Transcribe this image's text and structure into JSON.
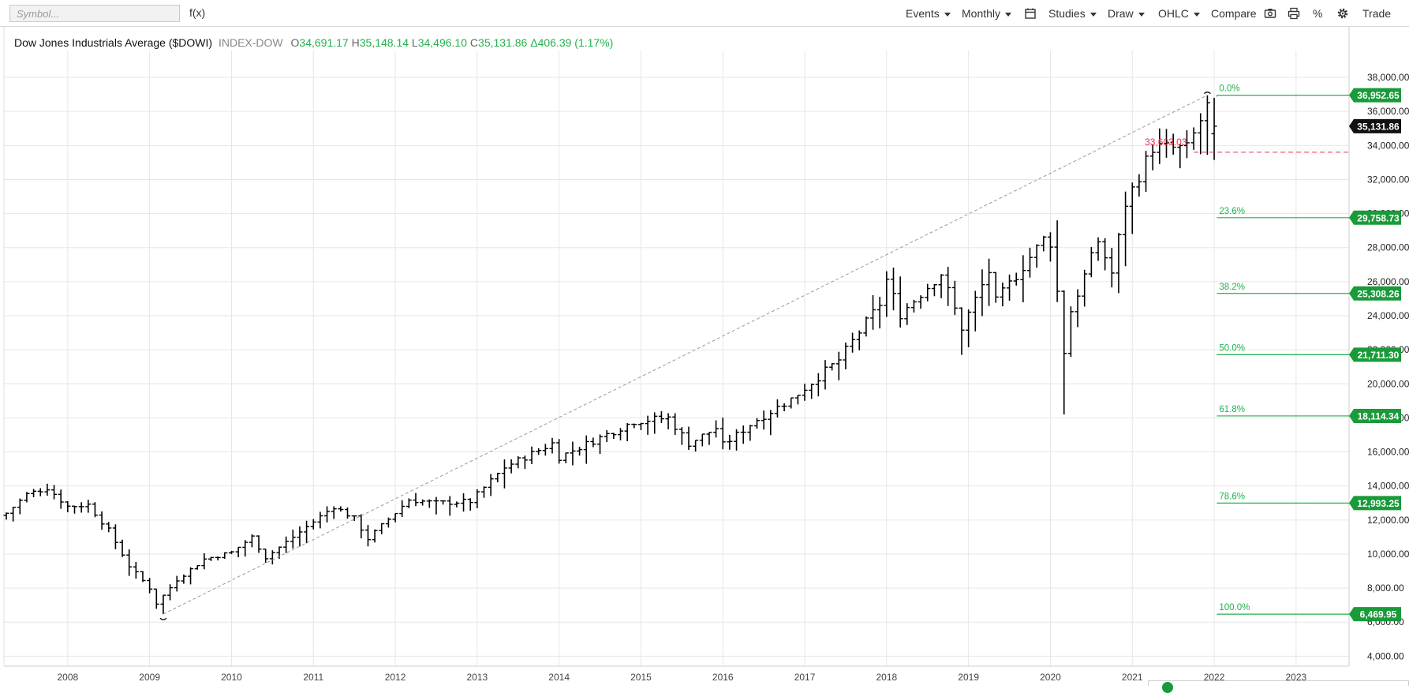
{
  "toolbar": {
    "symbol_placeholder": "Symbol...",
    "fx": "f(x)",
    "events": "Events",
    "period": "Monthly",
    "studies": "Studies",
    "draw": "Draw",
    "chart_type": "OHLC",
    "compare": "Compare",
    "percent": "%",
    "trade": "Trade"
  },
  "legend": {
    "name": "Dow Jones Industrials Average ($DOWI)",
    "exchange": "INDEX-DOW",
    "o_label": "O",
    "open": "34,691.17",
    "h_label": "H",
    "high": "35,148.14",
    "l_label": "L",
    "low": "34,496.10",
    "c_label": "C",
    "close": "35,131.86",
    "change": "Δ406.39 (1.17%)"
  },
  "colors": {
    "bars": "#000000",
    "green": "#22b14c",
    "fib_label": "#1a9a3a",
    "red": "#e8334a",
    "grid": "#e6e6e6",
    "last_price_bg": "#111111"
  },
  "chart_data": {
    "type": "ohlc",
    "title": "Dow Jones Industrials Average ($DOWI)",
    "x_tick_labels": [
      "2008",
      "2009",
      "2010",
      "2011",
      "2012",
      "2013",
      "2014",
      "2015",
      "2016",
      "2017",
      "2018",
      "2019",
      "2020",
      "2021",
      "2022",
      "2023"
    ],
    "y_tick_labels": [
      "4,000.00",
      "6,000.00",
      "8,000.00",
      "10,000.00",
      "12,000.00",
      "14,000.00",
      "16,000.00",
      "18,000.00",
      "20,000.00",
      "22,000.00",
      "24,000.00",
      "26,000.00",
      "28,000.00",
      "30,000.00",
      "32,000.00",
      "34,000.00",
      "36,000.00",
      "38,000.00"
    ],
    "y_ticks": [
      4000,
      6000,
      8000,
      10000,
      12000,
      14000,
      16000,
      18000,
      20000,
      22000,
      24000,
      26000,
      28000,
      30000,
      32000,
      34000,
      36000,
      38000
    ],
    "ylim": [
      3600,
      39300
    ],
    "x_range": [
      "2007-04",
      "2023-08"
    ],
    "grid": true,
    "anchors": [
      [
        "2007-04",
        12400
      ],
      [
        "2007-07",
        13500
      ],
      [
        "2007-10",
        13900
      ],
      [
        "2008-01",
        12800
      ],
      [
        "2008-04",
        12900
      ],
      [
        "2008-07",
        11400
      ],
      [
        "2008-10",
        9300
      ],
      [
        "2009-01",
        8000
      ],
      [
        "2009-02",
        7100
      ],
      [
        "2009-05",
        8500
      ],
      [
        "2009-09",
        9700
      ],
      [
        "2010-01",
        10100
      ],
      [
        "2010-04",
        11000
      ],
      [
        "2010-06",
        9800
      ],
      [
        "2010-12",
        11600
      ],
      [
        "2011-04",
        12800
      ],
      [
        "2011-07",
        12100
      ],
      [
        "2011-09",
        10900
      ],
      [
        "2012-03",
        13200
      ],
      [
        "2012-07",
        13000
      ],
      [
        "2012-12",
        13100
      ],
      [
        "2013-05",
        15100
      ],
      [
        "2013-12",
        16500
      ],
      [
        "2014-01",
        15700
      ],
      [
        "2014-12",
        17800
      ],
      [
        "2015-05",
        18000
      ],
      [
        "2015-08",
        16500
      ],
      [
        "2015-12",
        17400
      ],
      [
        "2016-01",
        16400
      ],
      [
        "2016-06",
        17900
      ],
      [
        "2016-11",
        19100
      ],
      [
        "2017-06",
        21400
      ],
      [
        "2017-12",
        24700
      ],
      [
        "2018-01",
        26100
      ],
      [
        "2018-03",
        24100
      ],
      [
        "2018-09",
        26500
      ],
      [
        "2018-12",
        23300
      ],
      [
        "2019-04",
        26600
      ],
      [
        "2019-05",
        24800
      ],
      [
        "2019-12",
        28500
      ],
      [
        "2020-01",
        28300
      ],
      [
        "2020-02",
        25400
      ],
      [
        "2020-03",
        21900
      ],
      [
        "2020-04",
        24300
      ],
      [
        "2020-08",
        28400
      ],
      [
        "2020-10",
        26500
      ],
      [
        "2020-12",
        30600
      ],
      [
        "2021-04",
        33900
      ],
      [
        "2021-09",
        33800
      ],
      [
        "2021-12",
        36300
      ],
      [
        "2022-01",
        35131.86
      ]
    ],
    "last_bar": {
      "date": "2022-01",
      "open": 34691.17,
      "high": 35148.14,
      "low": 34496.1,
      "close": 35131.86
    },
    "trendline": {
      "from": [
        "2009-03",
        6469.95
      ],
      "to": [
        "2021-12",
        36952.65
      ]
    },
    "fibonacci": {
      "high": 36952.65,
      "low": 6469.95,
      "start": "2021-12",
      "levels": [
        {
          "label": "0.0%",
          "value": 36952.65,
          "tag": "36,952.65"
        },
        {
          "label": "23.6%",
          "value": 29758.73,
          "tag": "29,758.73"
        },
        {
          "label": "38.2%",
          "value": 25308.26,
          "tag": "25,308.26"
        },
        {
          "label": "50.0%",
          "value": 21711.3,
          "tag": "21,711.30"
        },
        {
          "label": "61.8%",
          "value": 18114.34,
          "tag": "18,114.34"
        },
        {
          "label": "78.6%",
          "value": 12993.25,
          "tag": "12,993.25"
        },
        {
          "label": "100.0%",
          "value": 6469.95,
          "tag": "6,469.95"
        }
      ]
    },
    "last_price": {
      "value": 35131.86,
      "tag": "35,131.86"
    },
    "red_line": {
      "value": 33603,
      "label": "33,603.03",
      "start": "2021-10"
    }
  }
}
